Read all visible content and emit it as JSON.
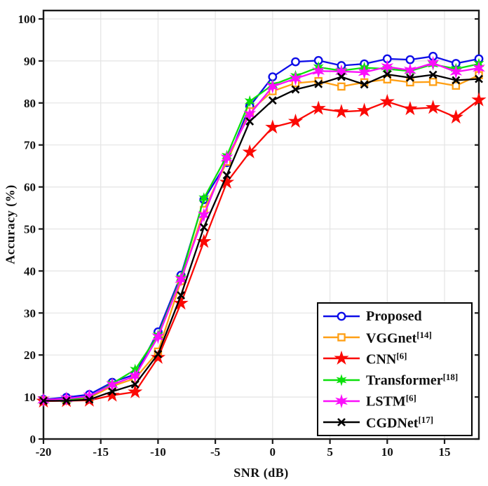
{
  "chart_data": {
    "type": "line",
    "title": "",
    "xlabel": "SNR (dB)",
    "ylabel": "Accuracy (%)",
    "xlim": [
      -20,
      18
    ],
    "ylim": [
      0,
      102
    ],
    "xticks": [
      -20,
      -15,
      -10,
      -5,
      0,
      5,
      10,
      15
    ],
    "yticks": [
      0,
      10,
      20,
      30,
      40,
      50,
      60,
      70,
      80,
      90,
      100
    ],
    "grid": true,
    "legend_position": "lower right",
    "grid_color": "#e4e4e4",
    "axis_color": "#1a1a1a",
    "x": [
      -20,
      -18,
      -16,
      -14,
      -12,
      -10,
      -8,
      -6,
      -4,
      -2,
      0,
      2,
      4,
      6,
      8,
      10,
      12,
      14,
      16,
      18
    ],
    "series": [
      {
        "name": "Proposed",
        "ref": "",
        "color": "#0d0de8",
        "marker": "circle-open",
        "values": [
          9.4,
          9.9,
          10.6,
          13.5,
          15.4,
          25.5,
          39.0,
          57.0,
          65.8,
          79.2,
          86.2,
          89.8,
          90.1,
          88.9,
          89.3,
          90.5,
          90.3,
          91.1,
          89.4,
          90.5
        ]
      },
      {
        "name": "VGGnet",
        "ref": "[14]",
        "color": "#ff9f14",
        "marker": "square-open",
        "values": [
          9.2,
          9.3,
          9.8,
          12.6,
          14.4,
          20.8,
          37.6,
          54.5,
          66.0,
          78.0,
          82.8,
          84.7,
          85.2,
          83.9,
          84.9,
          85.6,
          84.9,
          85.0,
          84.1,
          86.6
        ]
      },
      {
        "name": "CNN",
        "ref": "[6]",
        "color": "#fb0905",
        "marker": "star5",
        "values": [
          9.0,
          9.1,
          9.2,
          10.4,
          11.2,
          19.4,
          32.3,
          47.0,
          61.1,
          68.3,
          74.2,
          75.6,
          78.7,
          77.9,
          78.2,
          80.3,
          78.6,
          78.9,
          76.6,
          80.7
        ]
      },
      {
        "name": "Transformer",
        "ref": "[18]",
        "color": "#0be00b",
        "marker": "star6",
        "values": [
          9.2,
          9.4,
          10.0,
          13.2,
          16.5,
          24.7,
          38.4,
          57.3,
          67.4,
          80.4,
          84.3,
          86.4,
          88.5,
          87.7,
          88.4,
          88.1,
          87.6,
          89.2,
          88.1,
          89.3
        ]
      },
      {
        "name": "LSTM",
        "ref": "[6]",
        "color": "#fb0ffb",
        "marker": "star6-large",
        "values": [
          9.3,
          9.6,
          10.2,
          12.9,
          15.0,
          24.3,
          38.0,
          53.3,
          66.9,
          77.3,
          83.9,
          85.8,
          87.6,
          87.5,
          87.3,
          88.6,
          87.8,
          89.5,
          87.4,
          88.3
        ]
      },
      {
        "name": "CGDNet",
        "ref": "[17]",
        "color": "#000000",
        "marker": "x",
        "values": [
          9.1,
          9.1,
          9.4,
          11.3,
          13.0,
          20.2,
          34.2,
          50.4,
          62.8,
          75.6,
          80.6,
          83.2,
          84.5,
          86.2,
          84.4,
          86.8,
          86.0,
          86.7,
          85.4,
          85.7
        ]
      }
    ]
  }
}
